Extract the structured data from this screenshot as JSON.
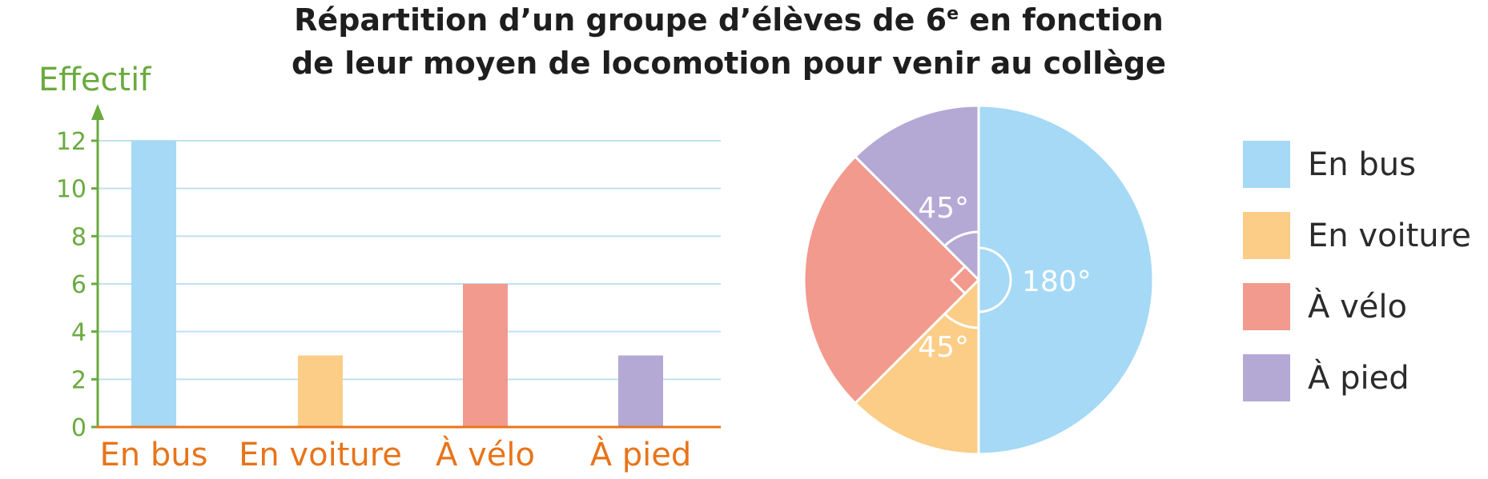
{
  "title": {
    "line1_before_sup": "Répartition d’un groupe d’élèves de 6",
    "line1_sup": "e",
    "line1_after_sup": " en fonction",
    "line2": "de leur moyen de locomotion pour venir au collège"
  },
  "colors": {
    "axis_y": "#6aaa3f",
    "axis_x": "#e8741a",
    "grid": "#bfe1f0",
    "en_bus": "#a5d9f5",
    "en_voiture": "#fbcd87",
    "a_velo": "#f29a8d",
    "a_pied": "#b4a9d5"
  },
  "chart_data": [
    {
      "type": "bar",
      "ylabel": "Effectif",
      "xlabel": "",
      "categories": [
        "En bus",
        "En voiture",
        "À vélo",
        "À pied"
      ],
      "values": [
        12,
        3,
        6,
        3
      ],
      "ylim": [
        0,
        12
      ],
      "yticks": [
        0,
        2,
        4,
        6,
        8,
        10,
        12
      ],
      "grid": true
    },
    {
      "type": "pie",
      "labels": [
        "En bus",
        "En voiture",
        "À vélo",
        "À pied"
      ],
      "angles": [
        180,
        45,
        90,
        45
      ],
      "angle_labels": [
        "180°",
        "45°",
        "",
        "45°"
      ],
      "right_angle_marker_on": "À vélo",
      "legend": [
        "En bus",
        "En voiture",
        "À vélo",
        "À pied"
      ],
      "legend_position": "right"
    }
  ]
}
